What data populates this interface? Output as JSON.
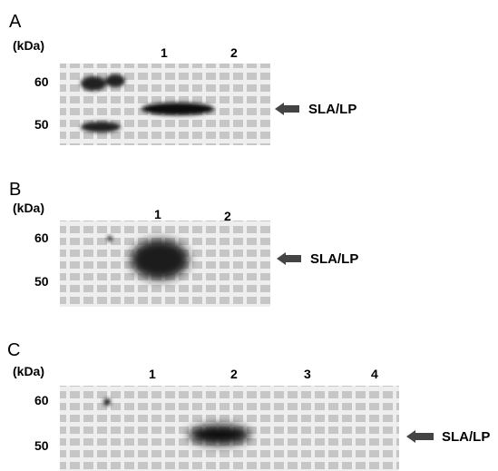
{
  "panels": [
    {
      "label": "A",
      "unit": "(kDa)",
      "markers": [
        "60",
        "50"
      ],
      "lanes": [
        "1",
        "2"
      ],
      "band_label": "SLA/LP"
    },
    {
      "label": "B",
      "unit": "(kDa)",
      "markers": [
        "60",
        "50"
      ],
      "lanes": [
        "1",
        "2"
      ],
      "band_label": "SLA/LP"
    },
    {
      "label": "C",
      "unit": "(kDa)",
      "markers": [
        "60",
        "50"
      ],
      "lanes": [
        "1",
        "2",
        "3",
        "4"
      ],
      "band_label": "SLA/LP"
    }
  ]
}
